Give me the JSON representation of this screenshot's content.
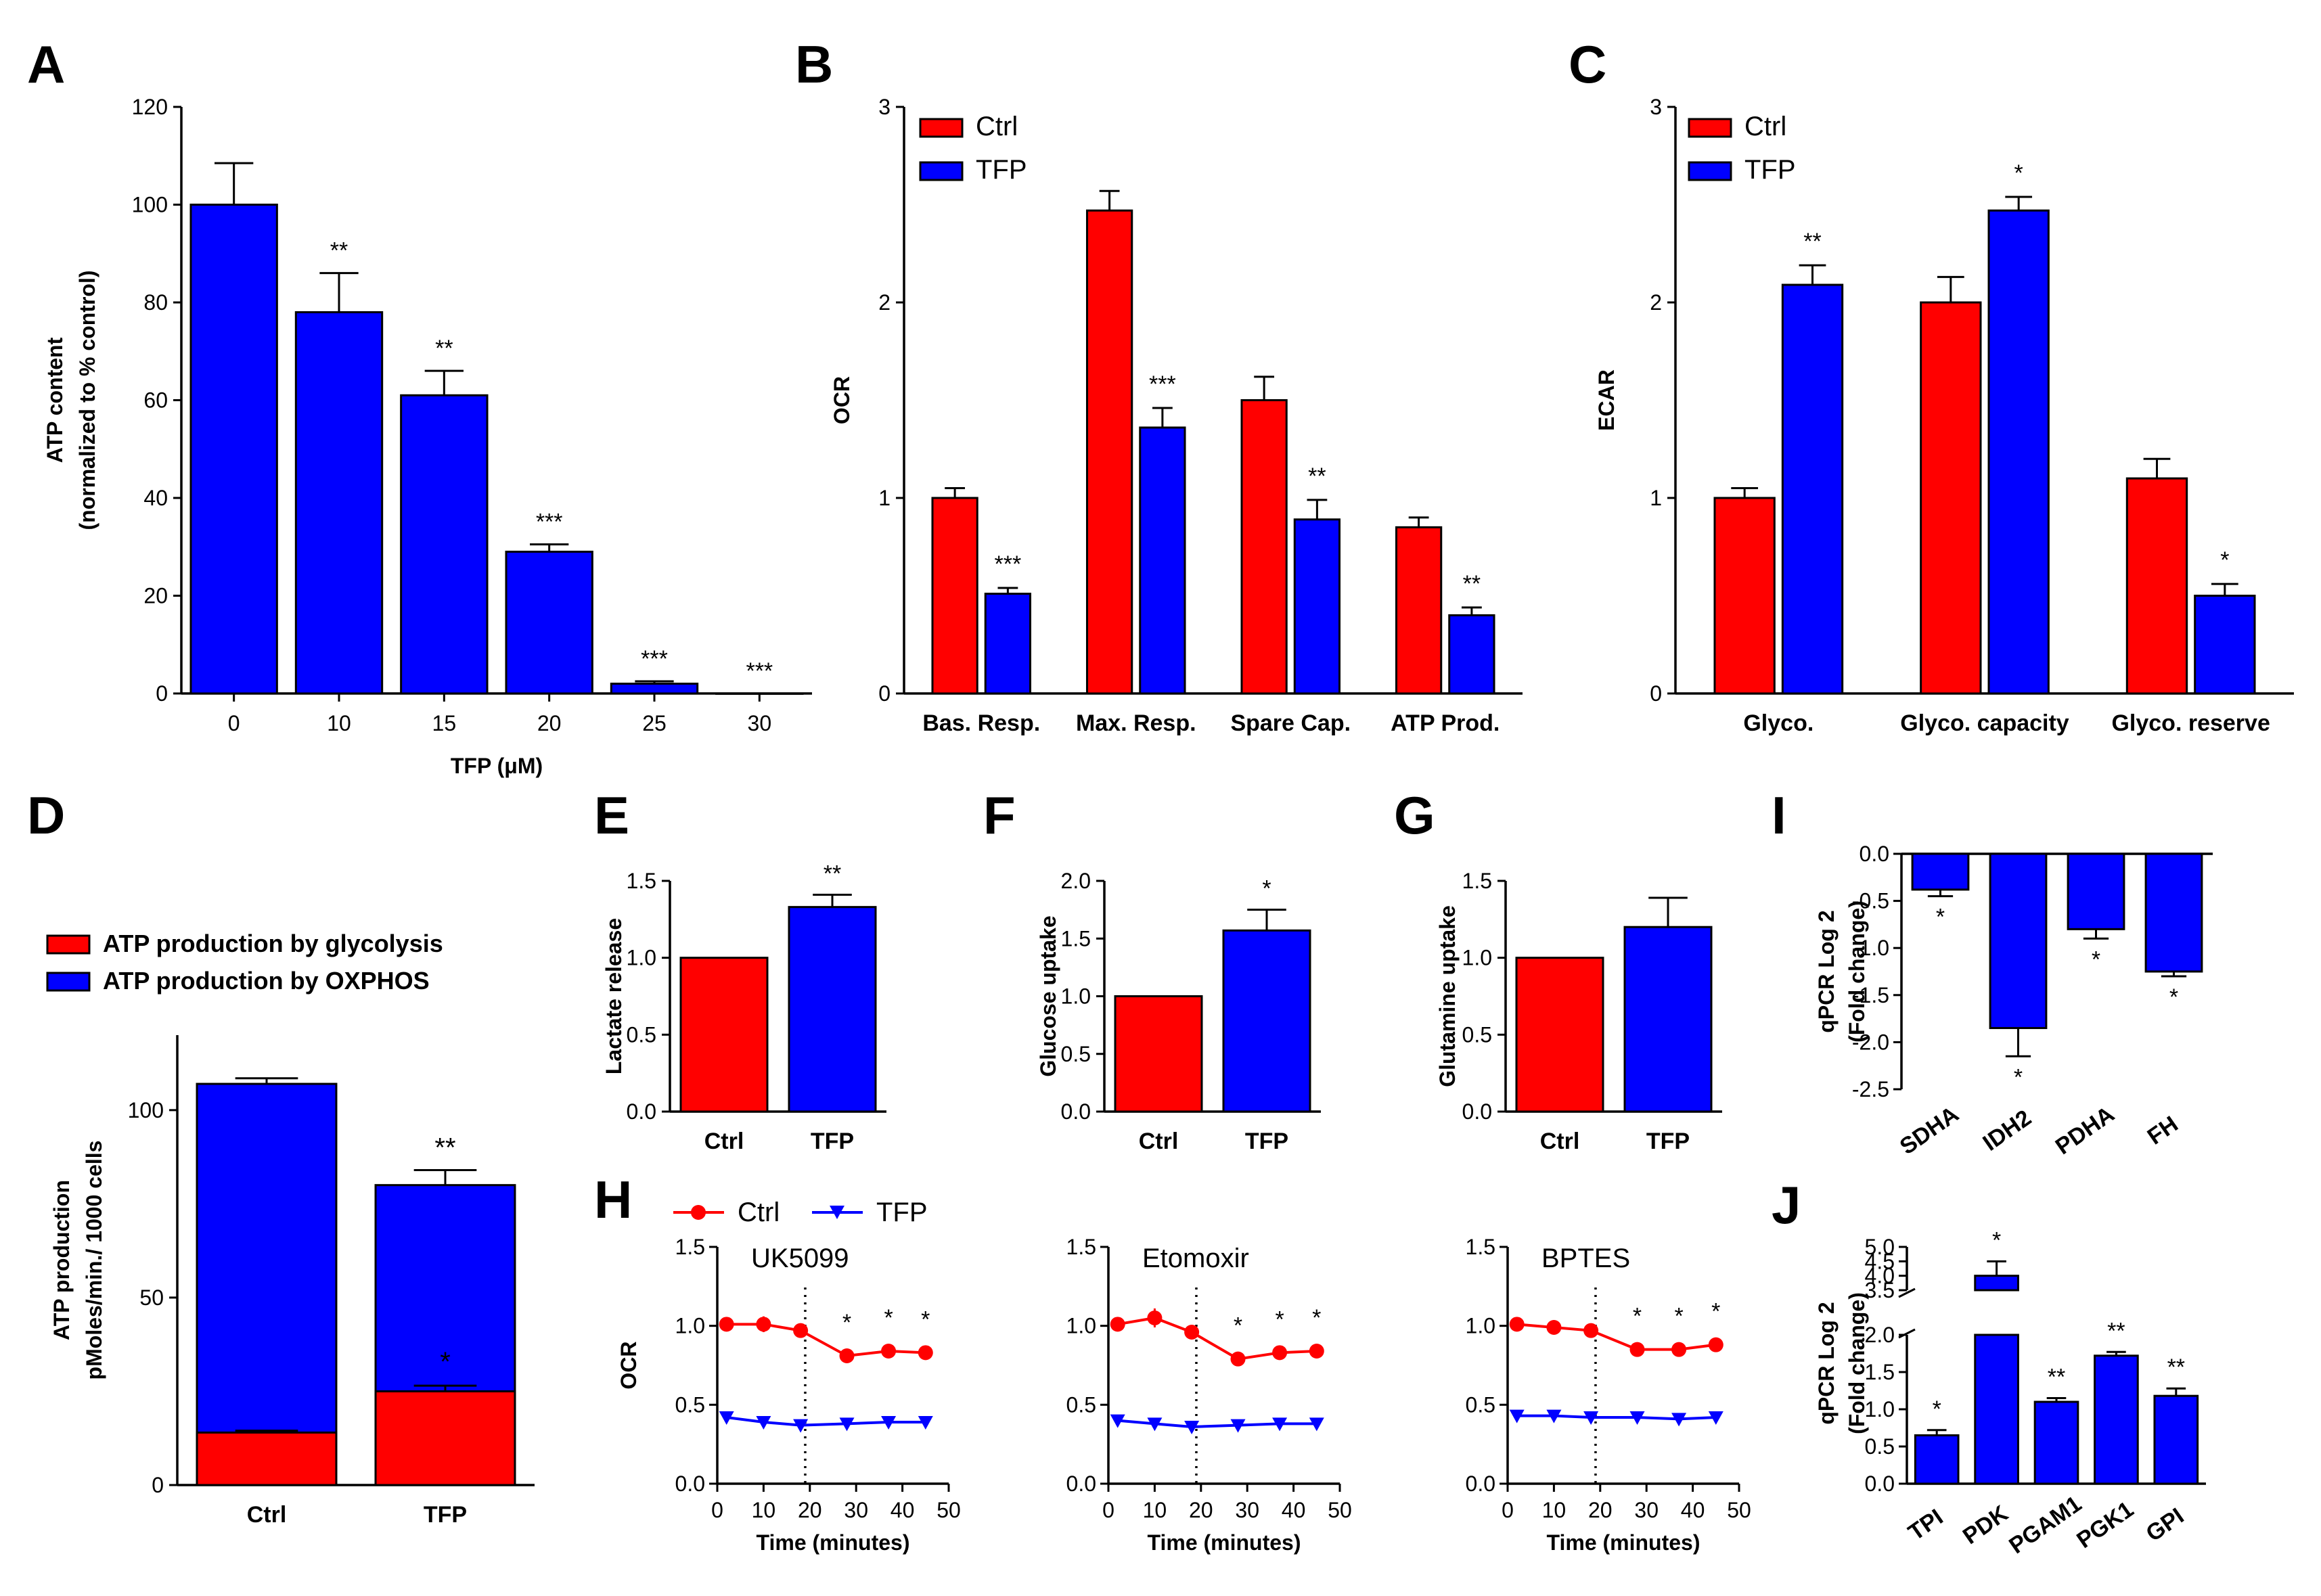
{
  "colors": {
    "ctrl": "#ff0000",
    "tfp": "#0000ff",
    "axis": "#000000"
  },
  "chart_data": [
    {
      "panel": "A",
      "type": "bar",
      "categories": [
        "0",
        "10",
        "15",
        "20",
        "25",
        "30"
      ],
      "values": [
        100,
        78,
        61,
        29,
        2,
        0
      ],
      "errors": [
        8.5,
        8,
        5,
        1.5,
        0.5,
        0
      ],
      "stars": [
        "",
        "**",
        "**",
        "***",
        "***",
        "***"
      ],
      "xlabel": "TFP (μM)",
      "ylabel": [
        "ATP content",
        "(normalized to % control)"
      ],
      "ylim": [
        0,
        120
      ],
      "yticks": [
        "0",
        "20",
        "40",
        "60",
        "80",
        "100",
        "120"
      ]
    },
    {
      "panel": "B",
      "type": "bar",
      "categories": [
        "Bas. Resp.",
        "Max. Resp.",
        "Spare Cap.",
        "ATP Prod."
      ],
      "legend": [
        "Ctrl",
        "TFP"
      ],
      "series": [
        {
          "name": "Ctrl",
          "values": [
            1.0,
            2.47,
            1.5,
            0.85
          ],
          "errors": [
            0.05,
            0.1,
            0.12,
            0.05
          ]
        },
        {
          "name": "TFP",
          "values": [
            0.51,
            1.36,
            0.89,
            0.4
          ],
          "errors": [
            0.03,
            0.1,
            0.1,
            0.04
          ]
        }
      ],
      "stars": [
        "***",
        "***",
        "**",
        "**"
      ],
      "ylabel": "OCR",
      "ylim": [
        0,
        3
      ],
      "yticks": [
        "0",
        "1",
        "2",
        "3"
      ]
    },
    {
      "panel": "C",
      "type": "bar",
      "categories": [
        "Glyco.",
        "Glyco. capacity",
        "Glyco. reserve"
      ],
      "legend": [
        "Ctrl",
        "TFP"
      ],
      "series": [
        {
          "name": "Ctrl",
          "values": [
            1.0,
            2.0,
            1.1
          ],
          "errors": [
            0.05,
            0.13,
            0.1
          ]
        },
        {
          "name": "TFP",
          "values": [
            2.09,
            2.47,
            0.5
          ],
          "errors": [
            0.1,
            0.07,
            0.06
          ]
        }
      ],
      "stars": [
        "**",
        "*",
        "*"
      ],
      "ylabel": "ECAR",
      "ylim": [
        0,
        3
      ],
      "yticks": [
        "0",
        "1",
        "2",
        "3"
      ]
    },
    {
      "panel": "D",
      "type": "bar",
      "stacked": true,
      "categories": [
        "Ctrl",
        "TFP"
      ],
      "legend": [
        "ATP production by glycolysis",
        "ATP production by OXPHOS"
      ],
      "series": [
        {
          "name": "ATP production by glycolysis",
          "values": [
            14,
            25
          ],
          "errors": [
            0.5,
            1.5
          ]
        },
        {
          "name": "ATP production by OXPHOS",
          "values": [
            93,
            55
          ],
          "errors": [
            1.5,
            4
          ]
        }
      ],
      "stars_total": [
        "",
        "**"
      ],
      "stars_glyco": [
        "",
        "*"
      ],
      "ylabel": [
        "ATP production",
        "pMoles/min./ 1000 cells"
      ],
      "ylim": [
        0,
        120
      ],
      "yticks": [
        "0",
        "50",
        "100"
      ]
    },
    {
      "panel": "E",
      "type": "bar",
      "categories": [
        "Ctrl",
        "TFP"
      ],
      "values": [
        1.0,
        1.33
      ],
      "errors": [
        0,
        0.08
      ],
      "stars": [
        "",
        "**"
      ],
      "ylabel": "Lactate release",
      "ylim": [
        0,
        1.5
      ],
      "yticks": [
        "0.0",
        "0.5",
        "1.0",
        "1.5"
      ]
    },
    {
      "panel": "F",
      "type": "bar",
      "categories": [
        "Ctrl",
        "TFP"
      ],
      "values": [
        1.0,
        1.57
      ],
      "errors": [
        0,
        0.18
      ],
      "stars": [
        "",
        "*"
      ],
      "ylabel": "Glucose uptake",
      "ylim": [
        0,
        2.0
      ],
      "yticks": [
        "0.0",
        "0.5",
        "1.0",
        "1.5",
        "2.0"
      ]
    },
    {
      "panel": "G",
      "type": "bar",
      "categories": [
        "Ctrl",
        "TFP"
      ],
      "values": [
        1.0,
        1.2
      ],
      "errors": [
        0,
        0.19
      ],
      "stars": [
        "",
        ""
      ],
      "ylabel": "Glutamine uptake",
      "ylim": [
        0,
        1.5
      ],
      "yticks": [
        "0.0",
        "0.5",
        "1.0",
        "1.5"
      ]
    },
    {
      "panel": "H",
      "type": "line",
      "legend": [
        "Ctrl",
        "TFP"
      ],
      "ylabel": "OCR",
      "xlabel": "Time (minutes)",
      "xlim": [
        0,
        50
      ],
      "ylim": [
        0,
        1.5
      ],
      "xticks": [
        "0",
        "10",
        "20",
        "30",
        "40",
        "50"
      ],
      "yticks": [
        "0.0",
        "0.5",
        "1.0",
        "1.5"
      ],
      "injection_x": 19,
      "subplots": [
        {
          "title": "UK5099",
          "x": [
            2,
            10,
            18,
            28,
            37,
            45
          ],
          "ctrl": [
            1.01,
            1.01,
            0.97,
            0.81,
            0.84,
            0.83
          ],
          "ctrl_err": [
            0.02,
            0.05,
            0.03,
            0.02,
            0.02,
            0.02
          ],
          "tfp": [
            0.42,
            0.39,
            0.37,
            0.38,
            0.39,
            0.39
          ],
          "stars": [
            "",
            "",
            "",
            "*",
            "*",
            "*"
          ]
        },
        {
          "title": "Etomoxir",
          "x": [
            2,
            10,
            18,
            28,
            37,
            45
          ],
          "ctrl": [
            1.01,
            1.05,
            0.96,
            0.79,
            0.83,
            0.84
          ],
          "ctrl_err": [
            0.02,
            0.06,
            0.03,
            0.02,
            0.02,
            0.02
          ],
          "tfp": [
            0.4,
            0.38,
            0.36,
            0.37,
            0.38,
            0.38
          ],
          "stars": [
            "",
            "",
            "",
            "*",
            "*",
            "*"
          ]
        },
        {
          "title": "BPTES",
          "x": [
            2,
            10,
            18,
            28,
            37,
            45
          ],
          "ctrl": [
            1.01,
            0.99,
            0.97,
            0.85,
            0.85,
            0.88
          ],
          "ctrl_err": [
            0.02,
            0.02,
            0.02,
            0.02,
            0.02,
            0.02
          ],
          "tfp": [
            0.43,
            0.43,
            0.42,
            0.42,
            0.41,
            0.42
          ],
          "stars": [
            "",
            "",
            "",
            "*",
            "*",
            "*"
          ]
        }
      ]
    },
    {
      "panel": "I",
      "type": "bar",
      "categories": [
        "SDHA",
        "IDH2",
        "PDHA",
        "FH"
      ],
      "values": [
        -0.38,
        -1.85,
        -0.8,
        -1.25
      ],
      "errors": [
        0.07,
        0.3,
        0.1,
        0.05
      ],
      "stars": [
        "*",
        "*",
        "*",
        "*"
      ],
      "ylabel": [
        "qPCR Log 2",
        "(Fold change)"
      ],
      "ylim": [
        -2.5,
        0
      ],
      "yticks": [
        "0.0",
        "-0.5",
        "-1.0",
        "-1.5",
        "-2.0",
        "-2.5"
      ]
    },
    {
      "panel": "J",
      "type": "bar",
      "axis_break": true,
      "categories": [
        "TPI",
        "PDK",
        "PGAM1",
        "PGK1",
        "GPI"
      ],
      "values": [
        0.65,
        4.0,
        1.1,
        1.72,
        1.18
      ],
      "errors": [
        0.07,
        0.5,
        0.05,
        0.05,
        0.1
      ],
      "stars": [
        "*",
        "*",
        "**",
        "**",
        "**"
      ],
      "ylabel": [
        "qPCR Log 2",
        "(Fold change)"
      ],
      "ylim_lower": [
        0,
        2.0
      ],
      "ylim_upper": [
        3.5,
        5.0
      ],
      "yticks": [
        "0.0",
        "0.5",
        "1.0",
        "1.5",
        "2.0",
        "3.5",
        "4.0",
        "4.5",
        "5.0"
      ]
    }
  ]
}
